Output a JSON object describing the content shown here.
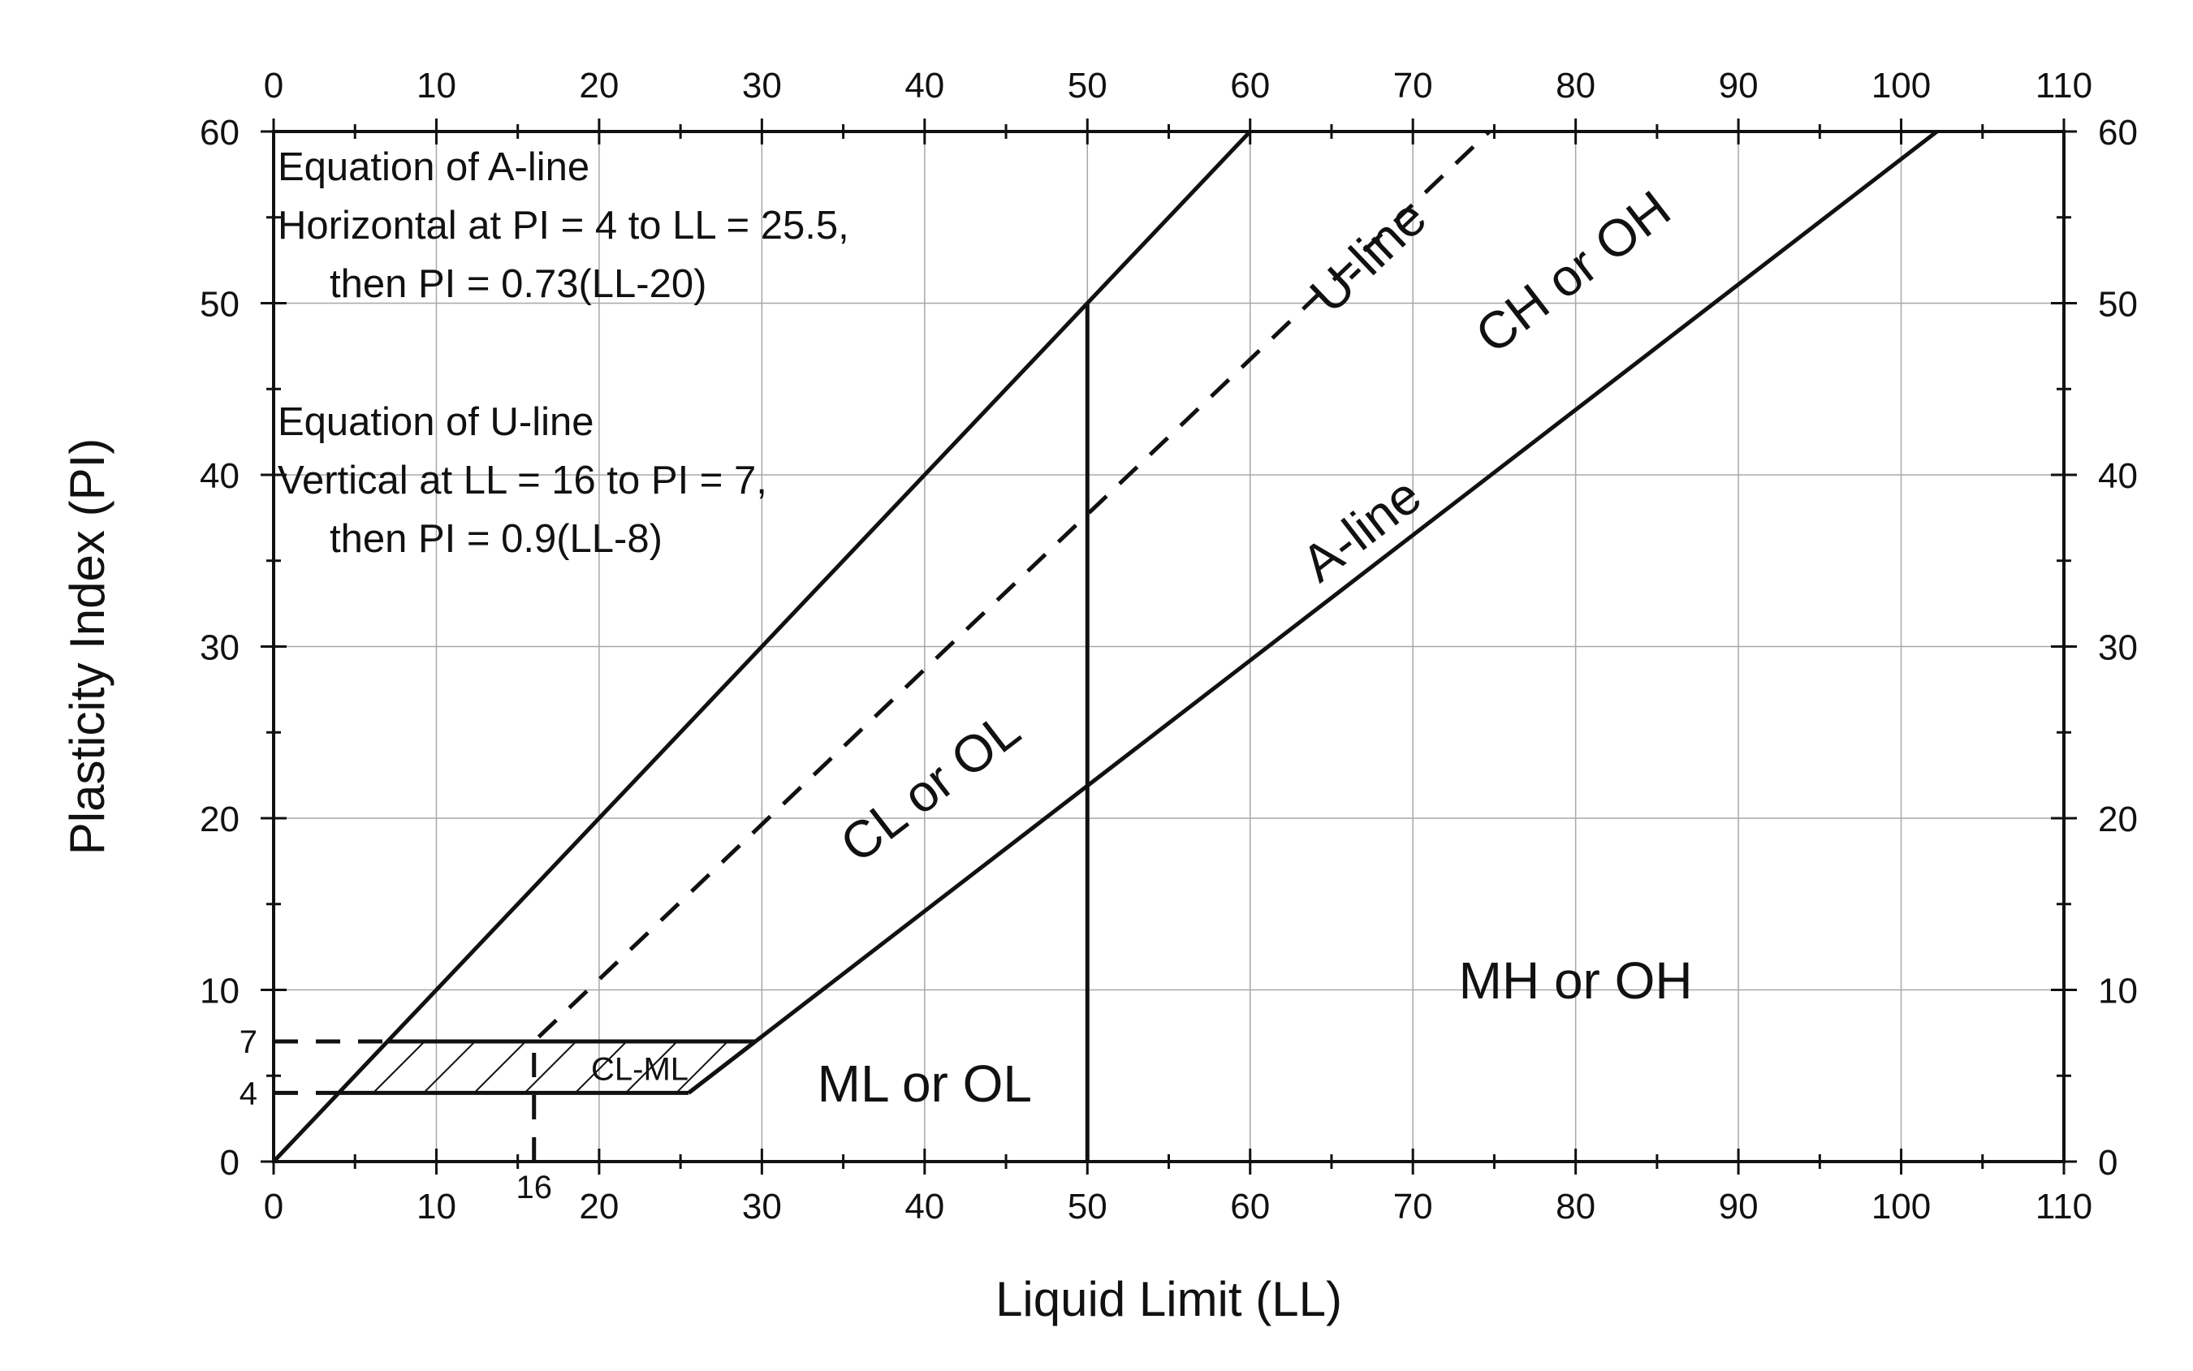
{
  "chart_data": {
    "type": "line",
    "title": "",
    "xlabel": "Liquid Limit (LL)",
    "ylabel": "Plasticity Index (PI)",
    "xlim": [
      0,
      110
    ],
    "ylim": [
      0,
      60
    ],
    "x_ticks": [
      0,
      10,
      20,
      30,
      40,
      50,
      60,
      70,
      80,
      90,
      100,
      110
    ],
    "y_ticks": [
      0,
      10,
      20,
      30,
      40,
      50,
      60
    ],
    "grid": true,
    "mirror_axes": true,
    "series": [
      {
        "name": "U-line",
        "style": "dashed",
        "x": [
          16,
          16,
          74.7
        ],
        "y": [
          0,
          7,
          60
        ]
      },
      {
        "name": "A-line",
        "style": "solid",
        "x": [
          25.5,
          102.2
        ],
        "y": [
          4,
          60
        ]
      },
      {
        "style": "solid",
        "x": [
          0,
          60
        ],
        "y": [
          0,
          60
        ]
      },
      {
        "style": "solid",
        "x": [
          50,
          50
        ],
        "y": [
          0,
          50
        ]
      },
      {
        "style": "dashed",
        "x": [
          0,
          7
        ],
        "y": [
          7,
          7
        ]
      },
      {
        "style": "dashed",
        "x": [
          0,
          4
        ],
        "y": [
          4,
          4
        ]
      }
    ],
    "hatched_region": {
      "label": "CL-ML",
      "polygon": [
        [
          4,
          4
        ],
        [
          25.5,
          4
        ],
        [
          29.6,
          7
        ],
        [
          7,
          7
        ]
      ]
    },
    "special_ticks": {
      "x": [
        {
          "value": 16,
          "label": "16"
        }
      ],
      "y": [
        {
          "value": 7,
          "label": "7"
        },
        {
          "value": 4,
          "label": "4"
        }
      ]
    },
    "line_labels": [
      {
        "text": "U-line",
        "x": 68,
        "y": 52
      },
      {
        "text": "A-line",
        "x": 67.5,
        "y": 36
      }
    ],
    "regions": [
      {
        "text": "CH or OH",
        "x": 80.5,
        "y": 51
      },
      {
        "text": "CL or OL",
        "x": 41,
        "y": 21
      },
      {
        "text": "MH or OH",
        "x": 80,
        "y": 9.5
      },
      {
        "text": "ML or OL",
        "x": 40,
        "y": 3.5
      }
    ],
    "annotations": [
      {
        "lines": [
          "Equation of A-line",
          "Horizontal at PI = 4 to LL = 25.5,",
          "then PI = 0.73(LL-20)"
        ]
      },
      {
        "lines": [
          "Equation of U-line",
          "Vertical at LL = 16 to PI = 7,",
          "then PI = 0.9(LL-8)"
        ]
      }
    ]
  }
}
